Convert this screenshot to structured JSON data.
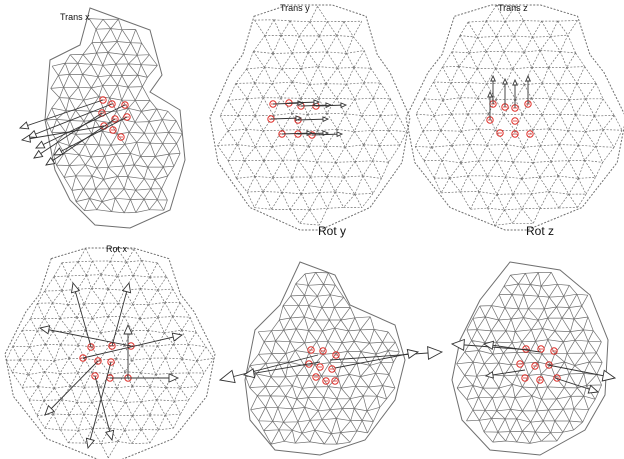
{
  "panels": [
    {
      "id": "trans-x",
      "label": "Trans x"
    },
    {
      "id": "trans-y",
      "label": "Trans y"
    },
    {
      "id": "trans-z",
      "label": "Trans z"
    },
    {
      "id": "rot-x",
      "label": "Rot x"
    },
    {
      "id": "rot-y",
      "label": "Rot y"
    },
    {
      "id": "rot-z",
      "label": "Rot z"
    }
  ],
  "colors": {
    "mesh": "#6f6f6f",
    "marker": "#e0302a",
    "arrow": "#333333",
    "background": "#ffffff"
  }
}
